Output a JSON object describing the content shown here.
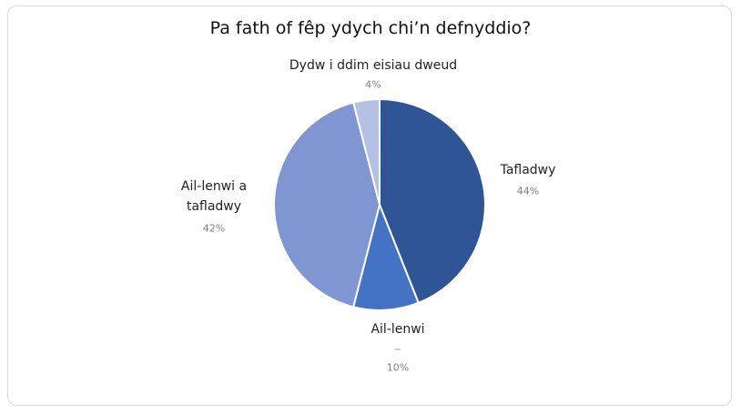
{
  "chart_data": {
    "type": "pie",
    "title": "Pa fath of fêp ydych chi’n defnyddio?",
    "categories": [
      "Tafladwy",
      "Ail-lenwi",
      "Ail-lenwi a tafladwy",
      "Dydw i ddim eisiau dweud"
    ],
    "values": [
      44,
      10,
      42,
      4
    ],
    "value_labels": [
      "44%",
      "10%",
      "42%",
      "4%"
    ],
    "colors": [
      "#2f5597",
      "#4472c4",
      "#7f96d2",
      "#b4c1e4"
    ]
  }
}
